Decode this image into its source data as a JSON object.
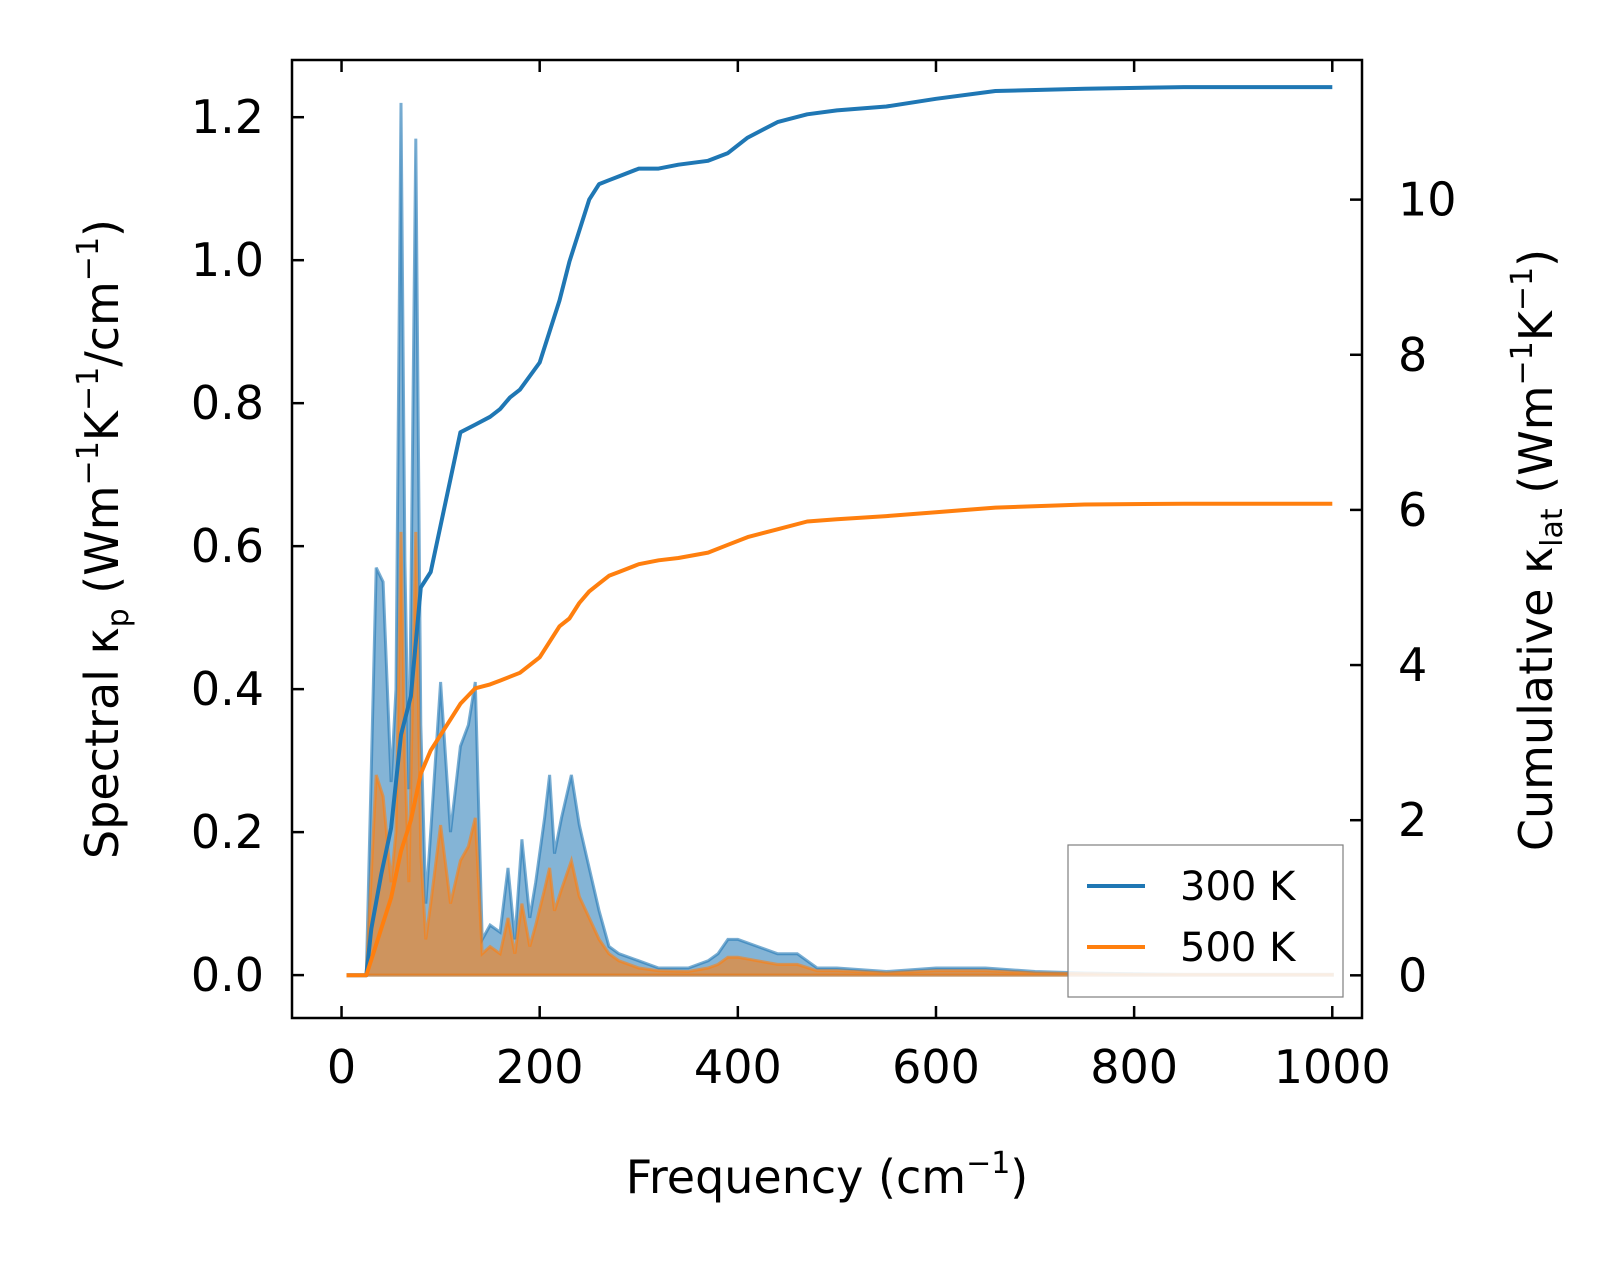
{
  "chart_data": {
    "type": "line",
    "xlabel": {
      "main": "Frequency (cm",
      "sup": "−1",
      "close": ")"
    },
    "ylabel_left": {
      "a": "Spectral κ",
      "a_sub": "p",
      "b": " (Wm",
      "b_sup": "−1",
      "c": "K",
      "c_sup": "−1",
      "d": "/cm",
      "d_sup": "−1",
      "e": ")"
    },
    "ylabel_right": {
      "a": "Cumulative κ",
      "a_sub": "lat",
      "b": " (Wm",
      "b_sup": "−1",
      "c": "K",
      "c_sup": "−1",
      "d": ")"
    },
    "xlim": [
      -50,
      1030
    ],
    "ylim_left": [
      -0.06,
      1.28
    ],
    "ylim_right": [
      -0.55,
      11.8
    ],
    "xticks": [
      0,
      200,
      400,
      600,
      800,
      1000
    ],
    "xtick_labels": [
      "0",
      "200",
      "400",
      "600",
      "800",
      "1000"
    ],
    "yticks_left": [
      0.0,
      0.2,
      0.4,
      0.6,
      0.8,
      1.0,
      1.2
    ],
    "ytick_labels_left": [
      "0.0",
      "0.2",
      "0.4",
      "0.6",
      "0.8",
      "1.0",
      "1.2"
    ],
    "yticks_right": [
      0,
      2,
      4,
      6,
      8,
      10
    ],
    "ytick_labels_right": [
      "0",
      "2",
      "4",
      "6",
      "8",
      "10"
    ],
    "legend": {
      "position": "lower-right",
      "entries": [
        "300 K",
        "500 K"
      ]
    },
    "colors": {
      "300 K": "#1f77b4",
      "500 K": "#ff7f0e"
    },
    "spectral_x": [
      5,
      25,
      35,
      42,
      50,
      55,
      60,
      64,
      68,
      75,
      80,
      85,
      90,
      100,
      110,
      120,
      128,
      135,
      142,
      150,
      160,
      168,
      175,
      182,
      190,
      196,
      205,
      210,
      215,
      222,
      232,
      240,
      250,
      260,
      270,
      280,
      300,
      320,
      350,
      370,
      380,
      390,
      400,
      420,
      440,
      460,
      480,
      500,
      550,
      600,
      650,
      700,
      750,
      800,
      850,
      900,
      950,
      1000
    ],
    "cumulative_x": [
      5,
      25,
      30,
      40,
      50,
      60,
      70,
      80,
      90,
      100,
      110,
      120,
      135,
      150,
      160,
      170,
      180,
      200,
      210,
      220,
      230,
      240,
      250,
      260,
      270,
      280,
      300,
      320,
      340,
      370,
      390,
      410,
      440,
      470,
      500,
      550,
      600,
      660,
      750,
      850,
      950,
      1000
    ],
    "series": [
      {
        "name": "300 K",
        "spectral": [
          0,
          0,
          0.57,
          0.55,
          0.27,
          0.4,
          1.22,
          0.58,
          0.26,
          1.17,
          0.35,
          0.1,
          0.2,
          0.41,
          0.2,
          0.32,
          0.35,
          0.41,
          0.05,
          0.07,
          0.06,
          0.15,
          0.05,
          0.19,
          0.08,
          0.13,
          0.22,
          0.28,
          0.17,
          0.22,
          0.28,
          0.21,
          0.15,
          0.09,
          0.04,
          0.03,
          0.02,
          0.01,
          0.01,
          0.02,
          0.03,
          0.05,
          0.05,
          0.04,
          0.03,
          0.03,
          0.01,
          0.01,
          0.005,
          0.01,
          0.01,
          0.005,
          0.003,
          0.002,
          0.001,
          0.001,
          0.001,
          0.001
        ],
        "cumulative": [
          0,
          0,
          0.6,
          1.3,
          1.9,
          3.1,
          3.6,
          5.0,
          5.2,
          5.8,
          6.4,
          7.0,
          7.1,
          7.2,
          7.3,
          7.45,
          7.55,
          7.9,
          8.3,
          8.7,
          9.2,
          9.6,
          10.0,
          10.2,
          10.25,
          10.3,
          10.4,
          10.4,
          10.45,
          10.5,
          10.6,
          10.8,
          11.0,
          11.1,
          11.15,
          11.2,
          11.3,
          11.4,
          11.43,
          11.45,
          11.45,
          11.45
        ]
      },
      {
        "name": "500 K",
        "spectral": [
          0,
          0,
          0.28,
          0.25,
          0.13,
          0.2,
          0.62,
          0.3,
          0.13,
          0.62,
          0.17,
          0.05,
          0.1,
          0.21,
          0.1,
          0.16,
          0.18,
          0.22,
          0.03,
          0.04,
          0.03,
          0.08,
          0.03,
          0.1,
          0.04,
          0.07,
          0.12,
          0.15,
          0.09,
          0.12,
          0.16,
          0.11,
          0.08,
          0.05,
          0.03,
          0.02,
          0.01,
          0.006,
          0.005,
          0.01,
          0.015,
          0.025,
          0.025,
          0.02,
          0.015,
          0.015,
          0.006,
          0.006,
          0.003,
          0.006,
          0.006,
          0.003,
          0.002,
          0.001,
          0.001,
          0.001,
          0.001,
          0.001
        ],
        "cumulative": [
          0,
          0,
          0.2,
          0.6,
          1.0,
          1.6,
          2.0,
          2.6,
          2.9,
          3.1,
          3.3,
          3.5,
          3.7,
          3.75,
          3.8,
          3.85,
          3.9,
          4.1,
          4.3,
          4.5,
          4.6,
          4.8,
          4.95,
          5.05,
          5.15,
          5.2,
          5.3,
          5.35,
          5.38,
          5.45,
          5.55,
          5.65,
          5.75,
          5.85,
          5.88,
          5.92,
          5.97,
          6.03,
          6.07,
          6.08,
          6.08,
          6.08
        ]
      }
    ]
  }
}
